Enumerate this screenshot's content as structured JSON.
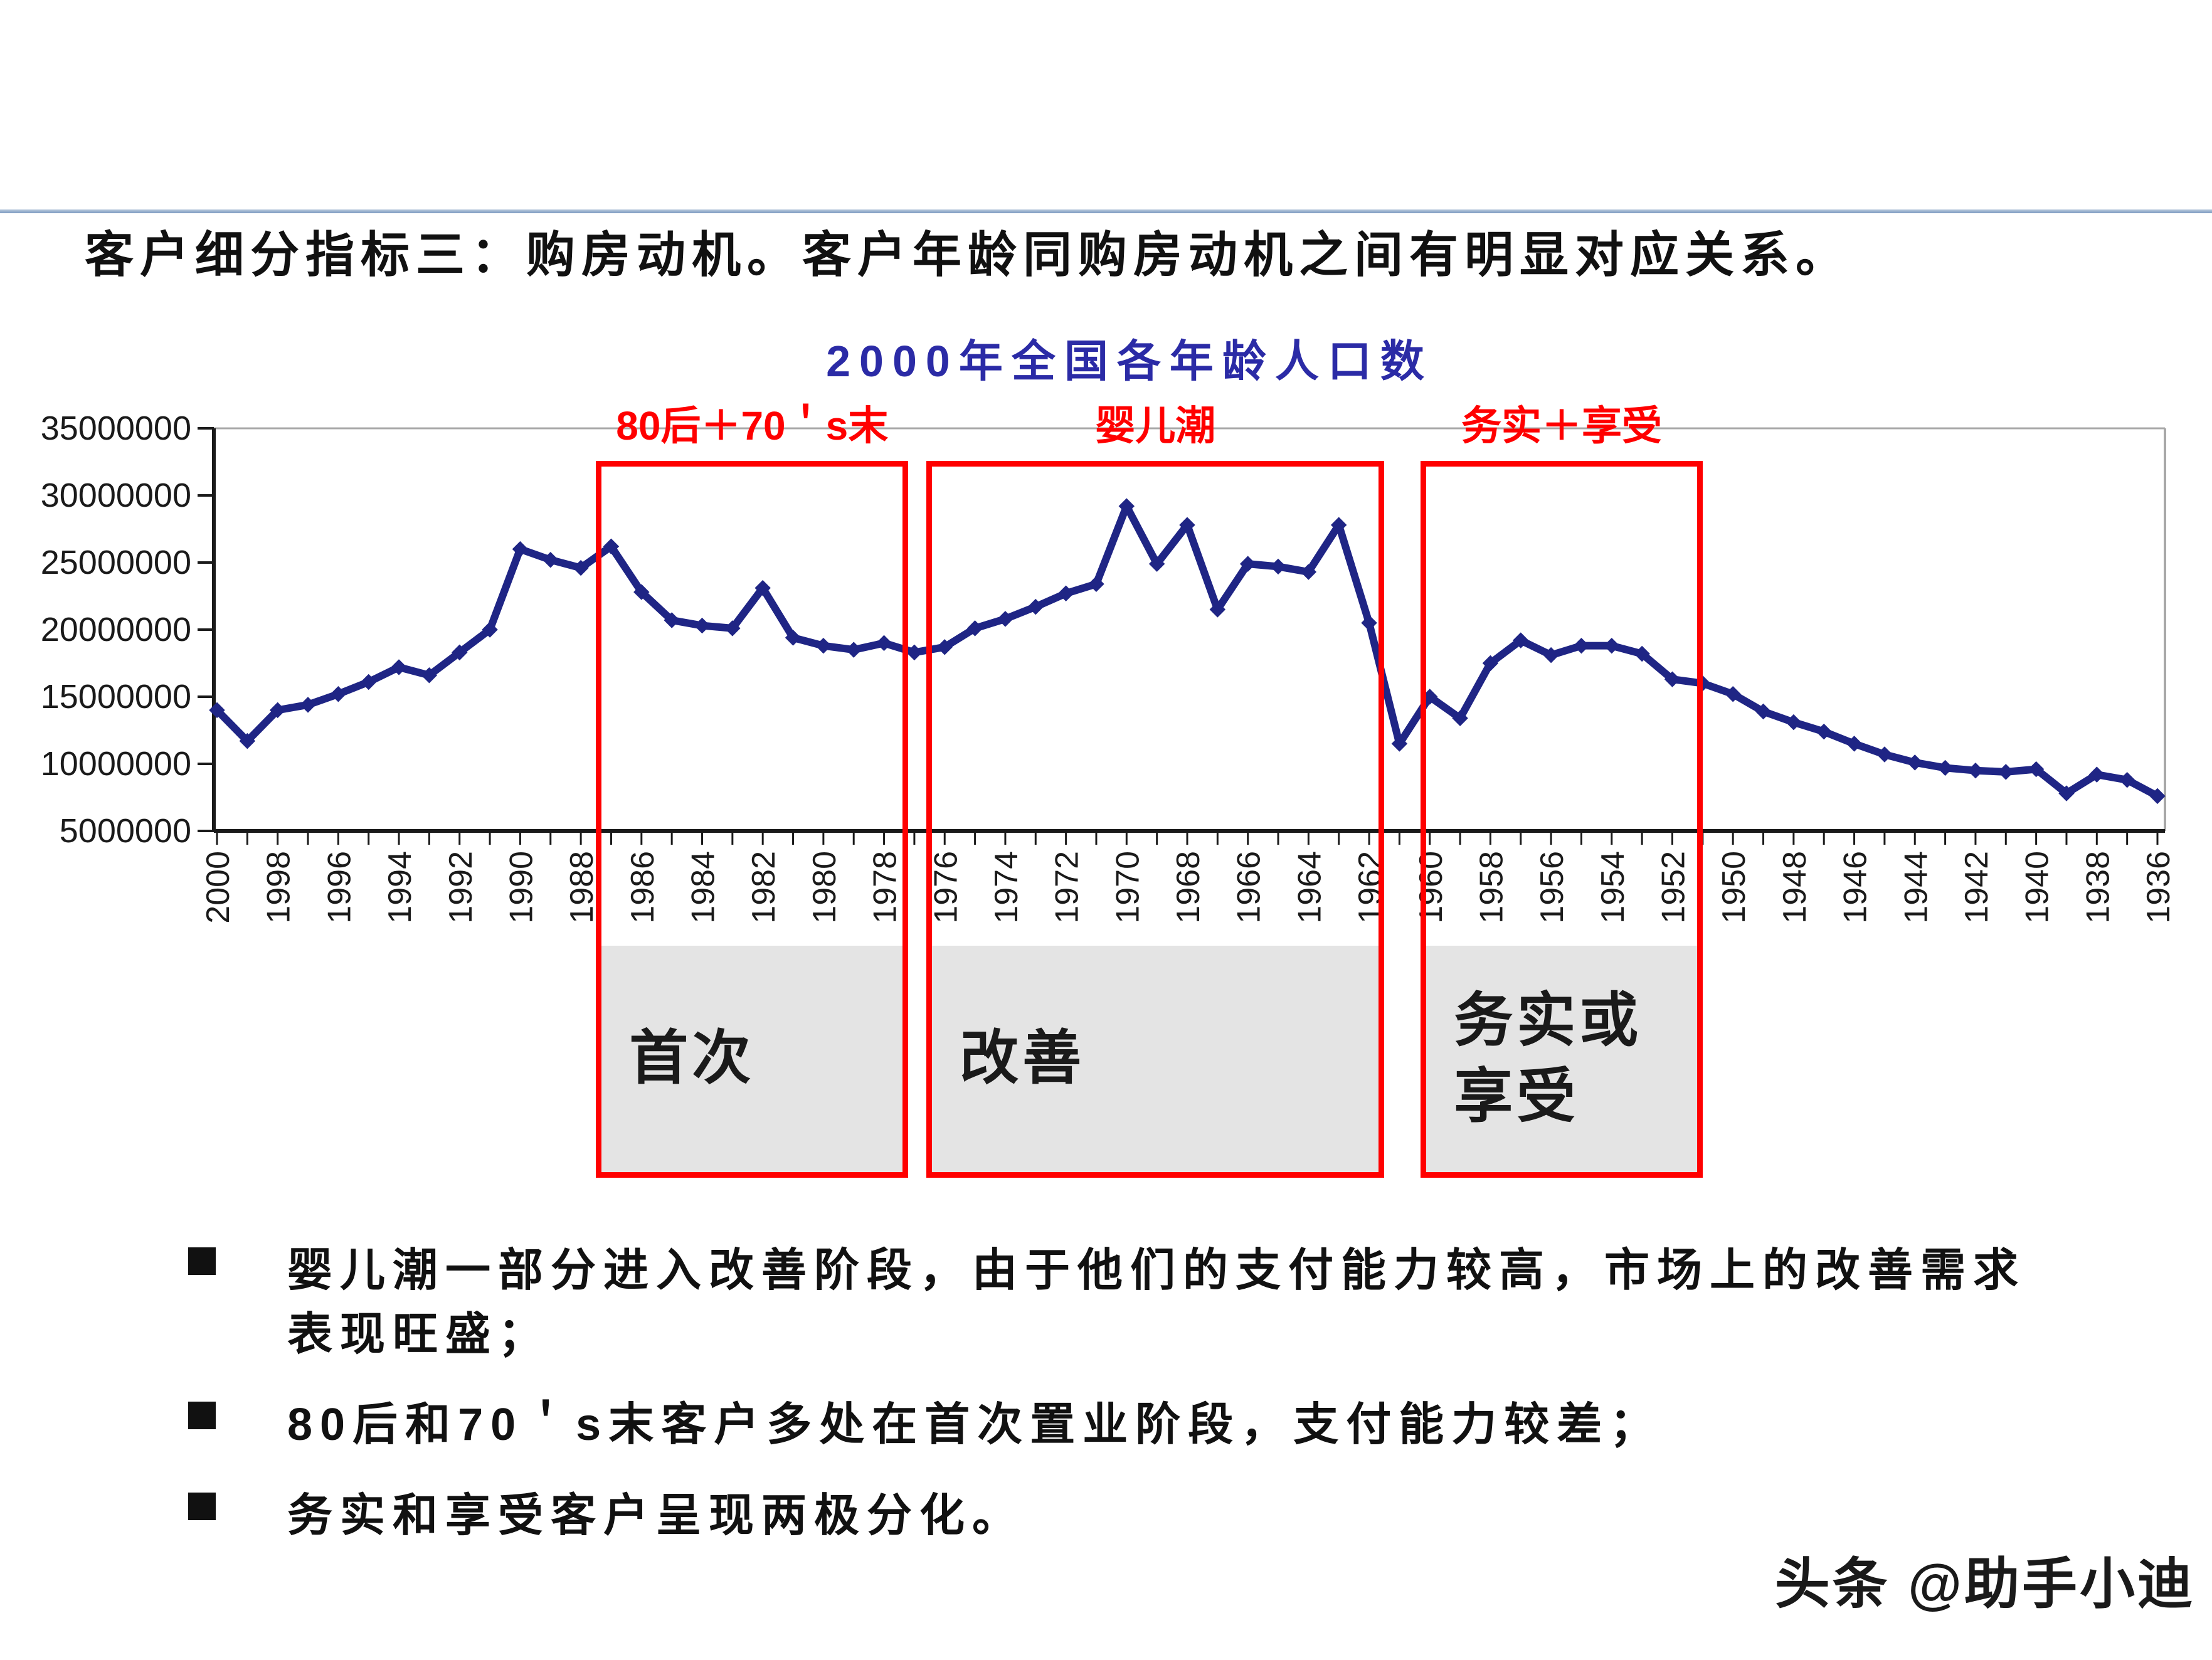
{
  "slide": {
    "title": "客户细分指标三：购房动机。客户年龄同购房动机之间有明显对应关系。"
  },
  "chart_data": {
    "type": "line",
    "title": "2000年全国各年龄人口数",
    "xlabel": "",
    "ylabel": "",
    "ylim": [
      5000000,
      35000000
    ],
    "y_tick_labels": [
      "35000000",
      "30000000",
      "25000000",
      "20000000",
      "15000000",
      "10000000",
      "5000000"
    ],
    "x_tick_label_every": 2,
    "grid": false,
    "legend_position": "none",
    "x_years": [
      2000,
      1999,
      1998,
      1997,
      1996,
      1995,
      1994,
      1993,
      1992,
      1991,
      1990,
      1989,
      1988,
      1987,
      1986,
      1985,
      1984,
      1983,
      1982,
      1981,
      1980,
      1979,
      1978,
      1977,
      1976,
      1975,
      1974,
      1973,
      1972,
      1971,
      1970,
      1969,
      1968,
      1967,
      1966,
      1965,
      1964,
      1963,
      1962,
      1961,
      1960,
      1959,
      1958,
      1957,
      1956,
      1955,
      1954,
      1953,
      1952,
      1951,
      1950,
      1949,
      1948,
      1947,
      1946,
      1945,
      1944,
      1943,
      1942,
      1941,
      1940,
      1939,
      1938,
      1937,
      1936
    ],
    "values": [
      14000000,
      11700000,
      14000000,
      14400000,
      15200000,
      16100000,
      17200000,
      16600000,
      18300000,
      20000000,
      26000000,
      25200000,
      24600000,
      26200000,
      22800000,
      20700000,
      20300000,
      20100000,
      23100000,
      19400000,
      18800000,
      18500000,
      19000000,
      18300000,
      18700000,
      20100000,
      20800000,
      21700000,
      22700000,
      23400000,
      29200000,
      24900000,
      27800000,
      21500000,
      24900000,
      24700000,
      24300000,
      27800000,
      20500000,
      11500000,
      15000000,
      13400000,
      17500000,
      19200000,
      18100000,
      18800000,
      18800000,
      18200000,
      16300000,
      16000000,
      15200000,
      13900000,
      13100000,
      12400000,
      11500000,
      10700000,
      10100000,
      9700000,
      9500000,
      9400000,
      9600000,
      7800000,
      9200000,
      8800000,
      7600000
    ],
    "line_color": "#1f2585",
    "marker": "diamond",
    "axis_color": "#1a1a1a",
    "frame_light_color": "#a8a8a8",
    "title_color": "#2b2ba6"
  },
  "annotations": {
    "box_color": "#ff0000",
    "regions": [
      {
        "top_label": "80后＋70＇s末",
        "zone_label": "首次",
        "year_from": 1987.5,
        "year_to": 1977.2
      },
      {
        "top_label": "婴儿潮",
        "zone_label": "改善",
        "year_from": 1976.6,
        "year_to": 1961.5
      },
      {
        "top_label": "务实＋享受",
        "zone_label": "务实或\n享受",
        "year_from": 1960.3,
        "year_to": 1951.0
      }
    ]
  },
  "bullets": [
    "婴儿潮一部分进入改善阶段，由于他们的支付能力较高，市场上的改善需求表现旺盛；",
    "80后和70＇s末客户多处在首次置业阶段，支付能力较差；",
    "务实和享受客户呈现两极分化。"
  ],
  "watermark": "头条 @助手小迪"
}
